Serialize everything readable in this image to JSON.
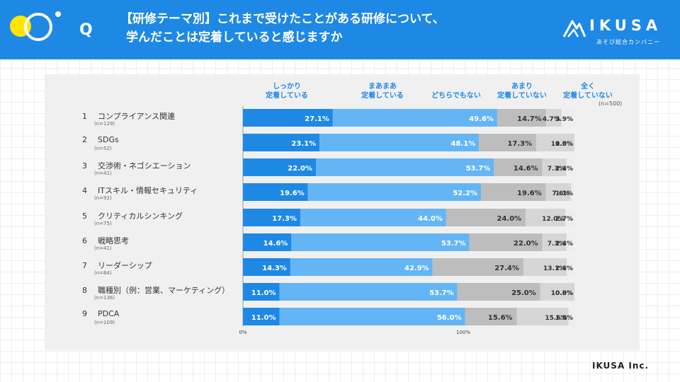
{
  "header": {
    "q_mark": "Q",
    "title_line1": "【研修テーマ別】これまで受けたことがある研修について、",
    "title_line2": "学んだことは定着していると感じますか"
  },
  "logo": {
    "name": "IKUSA",
    "tagline": "あそび総合カンパニー"
  },
  "footer": {
    "company": "IKUSA Inc."
  },
  "colors": {
    "header": "#1e88e5",
    "s1": "#1e88e5",
    "s2": "#64b5f6",
    "s3": "#bdbdbd",
    "s4": "#d6d6d6",
    "s5": "#eeeeee"
  },
  "chart_data": {
    "type": "bar",
    "orientation": "horizontal",
    "stacked": true,
    "sample_note": "(n=500)",
    "x_axis": {
      "min_label": "0%",
      "max_label": "100%",
      "range": [
        0,
        100
      ]
    },
    "categories": [
      {
        "num": "1",
        "label": "コンプライアンス関連",
        "n": "(n=129)"
      },
      {
        "num": "2",
        "label": "SDGs",
        "n": "(n=52)"
      },
      {
        "num": "3",
        "label": "交渉術・ネゴシエーション",
        "n": "(n=41)"
      },
      {
        "num": "4",
        "label": "ITスキル・情報セキュリティ",
        "n": "(n=92)"
      },
      {
        "num": "5",
        "label": "クリティカルシンキング",
        "n": "(n=75)"
      },
      {
        "num": "6",
        "label": "戦略思考",
        "n": "(n=41)"
      },
      {
        "num": "7",
        "label": "リーダーシップ",
        "n": "(n=84)"
      },
      {
        "num": "8",
        "label": "職種別（例：営業、マーケティング）",
        "n": "(n=136)"
      },
      {
        "num": "9",
        "label": "PDCA",
        "n": "(n=109)"
      }
    ],
    "series": [
      {
        "name": "しっかり\n定着している",
        "values": [
          27.1,
          23.1,
          22.0,
          19.6,
          17.3,
          14.6,
          14.3,
          11.0,
          11.0
        ]
      },
      {
        "name": "まあまあ\n定着している",
        "values": [
          49.6,
          48.1,
          53.7,
          52.2,
          44.0,
          53.7,
          42.9,
          53.7,
          56.0
        ]
      },
      {
        "name": "どちらでもない",
        "values": [
          14.7,
          17.3,
          14.6,
          19.6,
          24.0,
          22.0,
          27.4,
          25.0,
          15.6
        ]
      },
      {
        "name": "あまり\n定着していない",
        "values": [
          4.7,
          11.5,
          7.3,
          7.6,
          12.0,
          7.3,
          13.1,
          10.3,
          15.6
        ]
      },
      {
        "name": "全く\n定着していない",
        "values": [
          3.9,
          0.0,
          2.4,
          1.1,
          2.7,
          2.4,
          2.4,
          0.0,
          1.8
        ]
      }
    ]
  }
}
